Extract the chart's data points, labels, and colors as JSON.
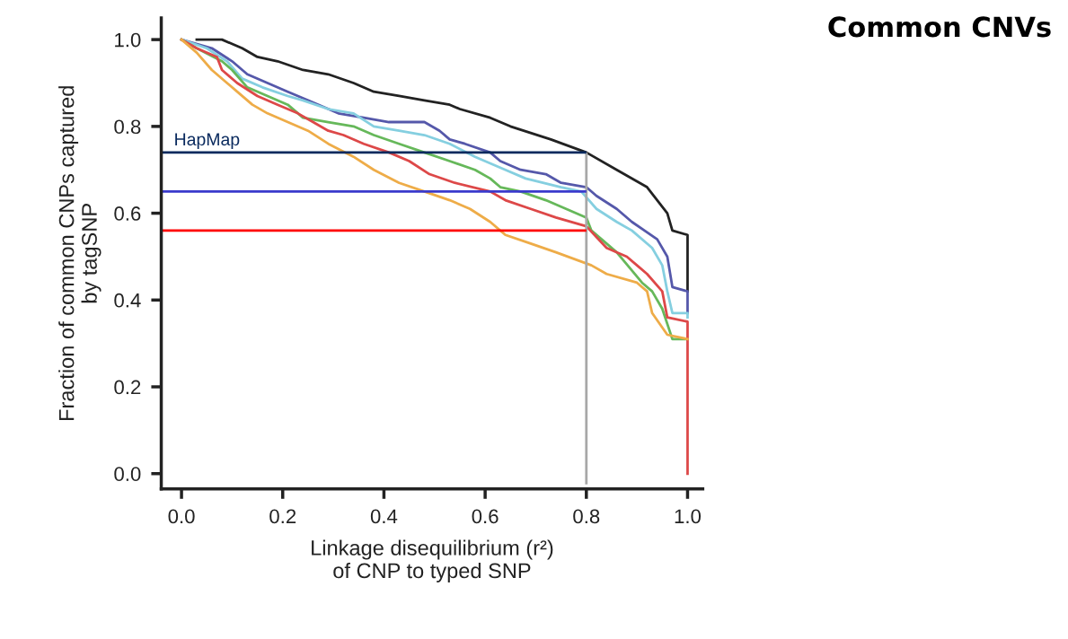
{
  "chart_data": {
    "type": "line",
    "title": "Common CNVs",
    "xlabel": "Linkage disequilibrium (r²)\nof CNP to typed SNP",
    "ylabel": "Fraction of common CNPs captured\nby tagSNP",
    "xlim": [
      -0.04,
      1.03
    ],
    "ylim": [
      -0.035,
      1.05
    ],
    "xticks": [
      {
        "value": 0,
        "label": "0.0"
      },
      0.2,
      0.4,
      0.6,
      0.8,
      {
        "value": 1,
        "label": "1.0"
      }
    ],
    "yticks": [
      {
        "value": 0,
        "label": "0.0"
      },
      0.2,
      0.4,
      0.6,
      0.8,
      {
        "value": 1,
        "label": "1.0"
      }
    ],
    "grid": false,
    "line_style": "solid",
    "marker": "none",
    "series": [
      {
        "color": "#222222",
        "x": [
          0.03,
          0.08,
          0.12,
          0.15,
          0.19,
          0.24,
          0.29,
          0.34,
          0.38,
          0.43,
          0.48,
          0.53,
          0.55,
          0.61,
          0.65,
          0.73,
          0.8,
          0.86,
          0.92,
          0.96,
          0.97,
          1.0,
          1.0
        ],
        "values": [
          1.0,
          1.0,
          0.98,
          0.96,
          0.95,
          0.93,
          0.92,
          0.9,
          0.88,
          0.87,
          0.86,
          0.85,
          0.84,
          0.82,
          0.8,
          0.77,
          0.74,
          0.7,
          0.66,
          0.6,
          0.56,
          0.55,
          0.42
        ]
      },
      {
        "color": "#5558aa",
        "x": [
          0.0,
          0.06,
          0.1,
          0.13,
          0.17,
          0.21,
          0.25,
          0.31,
          0.36,
          0.41,
          0.48,
          0.51,
          0.53,
          0.56,
          0.61,
          0.63,
          0.67,
          0.72,
          0.75,
          0.8,
          0.82,
          0.86,
          0.89,
          0.94,
          0.96,
          0.97,
          1.0,
          1.0
        ],
        "values": [
          1.0,
          0.98,
          0.95,
          0.92,
          0.9,
          0.88,
          0.86,
          0.83,
          0.82,
          0.81,
          0.81,
          0.79,
          0.77,
          0.76,
          0.74,
          0.72,
          0.7,
          0.69,
          0.67,
          0.66,
          0.64,
          0.61,
          0.58,
          0.54,
          0.5,
          0.43,
          0.42,
          0.37
        ]
      },
      {
        "color": "#85cfe0",
        "x": [
          0.0,
          0.05,
          0.09,
          0.12,
          0.16,
          0.21,
          0.24,
          0.29,
          0.34,
          0.38,
          0.43,
          0.48,
          0.53,
          0.58,
          0.64,
          0.68,
          0.75,
          0.79,
          0.82,
          0.86,
          0.89,
          0.93,
          0.95,
          0.96,
          0.97,
          1.0,
          1.0
        ],
        "values": [
          1.0,
          0.98,
          0.95,
          0.91,
          0.89,
          0.87,
          0.86,
          0.84,
          0.83,
          0.8,
          0.79,
          0.78,
          0.76,
          0.73,
          0.7,
          0.68,
          0.66,
          0.65,
          0.61,
          0.58,
          0.56,
          0.52,
          0.48,
          0.42,
          0.37,
          0.37,
          0.36
        ]
      },
      {
        "color": "#66b85a",
        "x": [
          0.0,
          0.03,
          0.08,
          0.1,
          0.13,
          0.17,
          0.21,
          0.24,
          0.29,
          0.34,
          0.38,
          0.43,
          0.48,
          0.53,
          0.58,
          0.61,
          0.63,
          0.67,
          0.72,
          0.76,
          0.8,
          0.81,
          0.86,
          0.91,
          0.93,
          0.95,
          0.97,
          1.0
        ],
        "values": [
          1.0,
          0.98,
          0.95,
          0.93,
          0.89,
          0.87,
          0.85,
          0.82,
          0.81,
          0.8,
          0.78,
          0.76,
          0.74,
          0.72,
          0.7,
          0.68,
          0.66,
          0.65,
          0.63,
          0.61,
          0.59,
          0.56,
          0.51,
          0.44,
          0.42,
          0.38,
          0.31,
          0.31
        ]
      },
      {
        "color": "#dd4848",
        "x": [
          0.0,
          0.03,
          0.07,
          0.08,
          0.11,
          0.15,
          0.19,
          0.23,
          0.26,
          0.29,
          0.32,
          0.36,
          0.41,
          0.45,
          0.49,
          0.54,
          0.61,
          0.64,
          0.69,
          0.74,
          0.8,
          0.84,
          0.88,
          0.9,
          0.92,
          0.95,
          0.96,
          1.0,
          1.0
        ],
        "values": [
          1.0,
          0.98,
          0.96,
          0.93,
          0.9,
          0.87,
          0.85,
          0.83,
          0.81,
          0.79,
          0.78,
          0.76,
          0.74,
          0.72,
          0.69,
          0.67,
          0.65,
          0.63,
          0.61,
          0.59,
          0.57,
          0.52,
          0.5,
          0.48,
          0.46,
          0.42,
          0.36,
          0.35,
          0.0
        ]
      },
      {
        "color": "#eeac48",
        "x": [
          0.0,
          0.03,
          0.06,
          0.09,
          0.11,
          0.14,
          0.17,
          0.21,
          0.25,
          0.29,
          0.34,
          0.38,
          0.43,
          0.48,
          0.53,
          0.57,
          0.61,
          0.64,
          0.69,
          0.74,
          0.81,
          0.84,
          0.9,
          0.92,
          0.93,
          0.96,
          1.0
        ],
        "values": [
          1.0,
          0.97,
          0.93,
          0.9,
          0.88,
          0.85,
          0.83,
          0.81,
          0.79,
          0.76,
          0.73,
          0.7,
          0.67,
          0.65,
          0.63,
          0.61,
          0.58,
          0.55,
          0.53,
          0.51,
          0.48,
          0.46,
          0.44,
          0.42,
          0.37,
          0.32,
          0.31
        ]
      }
    ],
    "ref_lines": [
      {
        "axis": "x",
        "value": 0.8,
        "color": "#a8a8a8"
      },
      {
        "axis": "y",
        "value": 0.74,
        "label": "HapMap",
        "color": "#0a2a5e"
      },
      {
        "axis": "y",
        "value": 0.65,
        "color": "#3a3acc"
      },
      {
        "axis": "y",
        "value": 0.56,
        "color": "#ff0000"
      }
    ]
  }
}
